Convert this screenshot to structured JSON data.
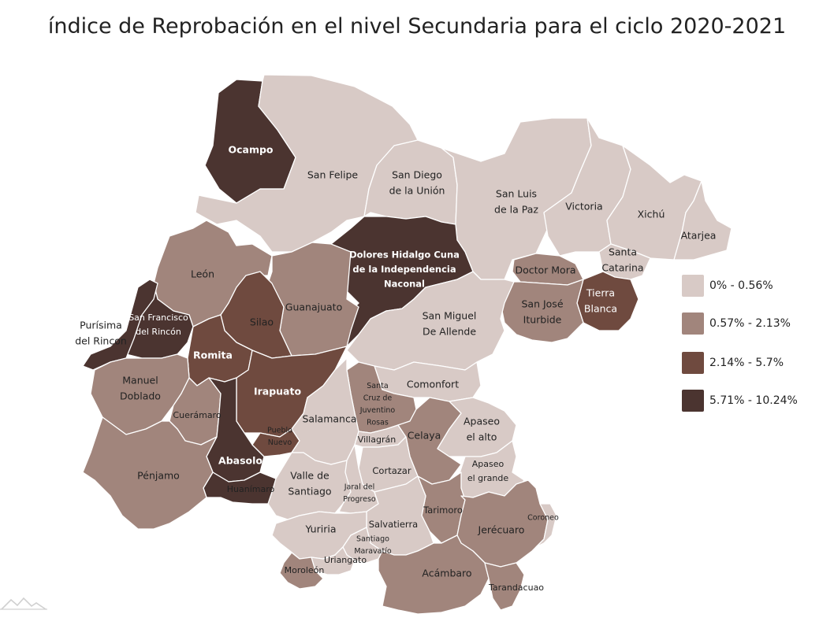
{
  "title": "índice de Reprobación en el nivel Secundaria para el ciclo 2020-2021",
  "colors": {
    "level1": "#d8cac6",
    "level2": "#a1857c",
    "level3": "#6f4a3f",
    "level4": "#4b3430"
  },
  "legend": [
    {
      "label": "0% - 0.56%",
      "level": 1
    },
    {
      "label": "0.57% - 2.13%",
      "level": 2
    },
    {
      "label": "2.14% - 5.7%",
      "level": 3
    },
    {
      "label": "5.71% - 10.24%",
      "level": 4
    }
  ],
  "municipalities": [
    {
      "name": "Ocampo",
      "level": 4
    },
    {
      "name": "San Felipe",
      "level": 1
    },
    {
      "name": "San Diego de la Unión",
      "lines": [
        "San Diego",
        "de la Unión"
      ],
      "level": 1
    },
    {
      "name": "San Luis de la Paz",
      "lines": [
        "San Luis",
        "de la Paz"
      ],
      "level": 1
    },
    {
      "name": "Victoria",
      "level": 1
    },
    {
      "name": "Xichú",
      "level": 1
    },
    {
      "name": "Atarjea",
      "level": 1
    },
    {
      "name": "Santa Catarina",
      "lines": [
        "Santa",
        "Catarina"
      ],
      "level": 1
    },
    {
      "name": "Doctor Mora",
      "level": 2
    },
    {
      "name": "Tierra Blanca",
      "lines": [
        "Tierra",
        "Blanca"
      ],
      "level": 3
    },
    {
      "name": "San José Iturbide",
      "lines": [
        "San José",
        "Iturbide"
      ],
      "level": 2
    },
    {
      "name": "Dolores Hidalgo Cuna de la Independencia Naconal",
      "lines": [
        "Dolores Hidalgo Cuna",
        "de la Independencia",
        "Naconal"
      ],
      "level": 4
    },
    {
      "name": "San Miguel De Allende",
      "lines": [
        "San Miguel",
        "De Allende"
      ],
      "level": 1
    },
    {
      "name": "León",
      "level": 2
    },
    {
      "name": "Guanajuato",
      "level": 2
    },
    {
      "name": "Silao",
      "level": 3
    },
    {
      "name": "San Francisco del Rincón",
      "lines": [
        "San Francisco",
        "del Rincón"
      ],
      "level": 4
    },
    {
      "name": "Purísima del Rincon",
      "lines": [
        "Purísima",
        "del Rincon"
      ],
      "level": 4
    },
    {
      "name": "Romita",
      "level": 3
    },
    {
      "name": "Manuel Doblado",
      "lines": [
        "Manuel",
        "Doblado"
      ],
      "level": 2
    },
    {
      "name": "Cuerámaro",
      "level": 2
    },
    {
      "name": "Irapuato",
      "level": 3
    },
    {
      "name": "Abasolo",
      "level": 4
    },
    {
      "name": "Pueblo Nuevo",
      "lines": [
        "Pueblo",
        "Nuevo"
      ],
      "level": 3
    },
    {
      "name": "Huanímaro",
      "level": 4
    },
    {
      "name": "Pénjamo",
      "level": 2
    },
    {
      "name": "Comonfort",
      "level": 1
    },
    {
      "name": "Santa Cruz de Juventino Rosas",
      "lines": [
        "Santa",
        "Cruz de",
        "Juventino",
        "Rosas"
      ],
      "level": 2
    },
    {
      "name": "Salamanca",
      "level": 1
    },
    {
      "name": "Villagrán",
      "level": 1
    },
    {
      "name": "Celaya",
      "level": 2
    },
    {
      "name": "Apaseo el alto",
      "lines": [
        "Apaseo",
        "el alto"
      ],
      "level": 1
    },
    {
      "name": "Apaseo el grande",
      "lines": [
        "Apaseo",
        "el grande"
      ],
      "level": 1
    },
    {
      "name": "Cortazar",
      "level": 1
    },
    {
      "name": "Valle de Santiago",
      "lines": [
        "Valle de",
        "Santiago"
      ],
      "level": 1
    },
    {
      "name": "Jaral del Progreso",
      "lines": [
        "Jaral del",
        "Progreso"
      ],
      "level": 1
    },
    {
      "name": "Tarimoro",
      "level": 2
    },
    {
      "name": "Jerécuaro",
      "level": 2
    },
    {
      "name": "Coroneo",
      "level": 1
    },
    {
      "name": "Salvatierra",
      "level": 1
    },
    {
      "name": "Yuriria",
      "level": 1
    },
    {
      "name": "Santiago Maravatío",
      "lines": [
        "Santiago",
        "Maravatío"
      ],
      "level": 1
    },
    {
      "name": "Uriangato",
      "level": 1
    },
    {
      "name": "Moroleón",
      "level": 2
    },
    {
      "name": "Acámbaro",
      "level": 2
    },
    {
      "name": "Tarandacuao",
      "level": 2
    }
  ]
}
